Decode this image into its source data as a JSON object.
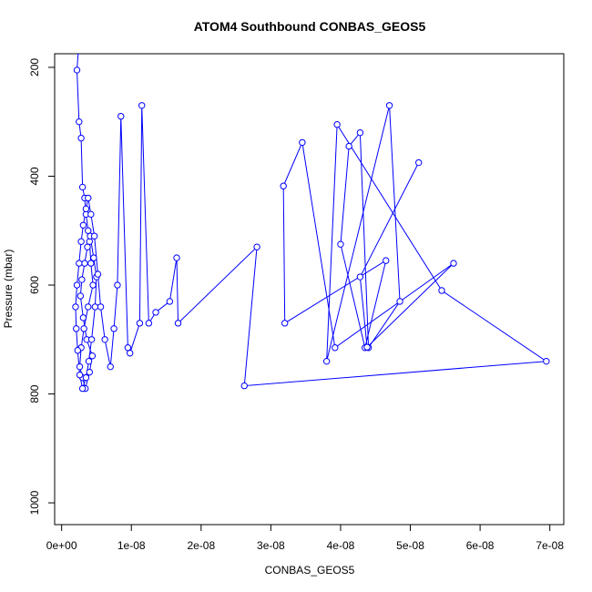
{
  "chart_data": {
    "type": "line",
    "title": "ATOM4 Southbound CONBAS_GEOS5",
    "xlabel": "CONBAS_GEOS5",
    "ylabel": "Pressure (mbar)",
    "xlim": [
      -1e-09,
      7.2e-08
    ],
    "ylim": [
      1040,
      175
    ],
    "y_reversed": true,
    "xticks": [
      0,
      1e-08,
      2e-08,
      3e-08,
      4e-08,
      5e-08,
      6e-08,
      7e-08
    ],
    "xtick_labels": [
      "0e+00",
      "1e-08",
      "2e-08",
      "3e-08",
      "4e-08",
      "5e-08",
      "6e-08",
      "7e-08"
    ],
    "yticks": [
      200,
      400,
      600,
      800,
      1000
    ],
    "ytick_labels": [
      "200",
      "400",
      "600",
      "800",
      "1000"
    ],
    "grid": false,
    "legend": "none",
    "line_color": "#0000ff",
    "marker": "open-circle",
    "series": [
      {
        "x": [
          2.4e-09,
          2.2e-09,
          2.5e-09,
          2.8e-09,
          3e-09,
          3.3e-09,
          3.5e-09,
          3.8e-09,
          4e-09,
          4.2e-09,
          4.5e-09,
          3.8e-09,
          3.2e-09,
          2.8e-09,
          2.6e-09,
          3e-09,
          3.4e-09,
          4e-09,
          4.4e-09,
          3.6e-09,
          3.1e-09,
          2.7e-09,
          2.9e-09,
          3.3e-09,
          3.7e-09,
          4.1e-09,
          4.6e-09,
          5e-09,
          4.8e-09,
          4.3e-09,
          3.9e-09,
          3.5e-09,
          3e-09,
          2.6e-09,
          2.3e-09,
          2.1e-09,
          2e-09,
          2.2e-09,
          2.5e-09,
          2.8e-09,
          3.1e-09,
          3.5e-09,
          3.8e-09,
          4.2e-09,
          4.7e-09,
          5.2e-09,
          5.6e-09,
          6.2e-09,
          7e-09,
          7.5e-09,
          8e-09,
          8.5e-09,
          9.5e-09,
          9.8e-09,
          1.12e-08,
          1.15e-08,
          1.25e-08,
          1.35e-08,
          1.55e-08,
          1.65e-08,
          1.67e-08,
          2.8e-08,
          2.62e-08,
          6.95e-08,
          5.45e-08,
          3.95e-08,
          3.8e-08,
          4.7e-08,
          4.85e-08,
          4.4e-08,
          4.28e-08,
          4.12e-08,
          4e-08,
          4.35e-08,
          4.65e-08,
          3.2e-08,
          3.18e-08,
          3.45e-08,
          3.92e-08,
          5.62e-08,
          4.38e-08,
          4.28e-08,
          5.12e-08
        ],
        "y": [
          170,
          205,
          300,
          330,
          420,
          440,
          470,
          500,
          520,
          560,
          600,
          640,
          680,
          715,
          750,
          770,
          790,
          760,
          730,
          700,
          660,
          620,
          590,
          560,
          530,
          510,
          550,
          585,
          640,
          700,
          740,
          770,
          790,
          765,
          720,
          680,
          640,
          600,
          560,
          520,
          490,
          460,
          440,
          470,
          510,
          580,
          640,
          700,
          750,
          680,
          600,
          290,
          715,
          725,
          670,
          270,
          670,
          650,
          630,
          550,
          670,
          530,
          785,
          740,
          610,
          305,
          740,
          270,
          630,
          715,
          320,
          345,
          525,
          715,
          555,
          670,
          418,
          338,
          715,
          560,
          714,
          585,
          375
        ]
      }
    ]
  }
}
